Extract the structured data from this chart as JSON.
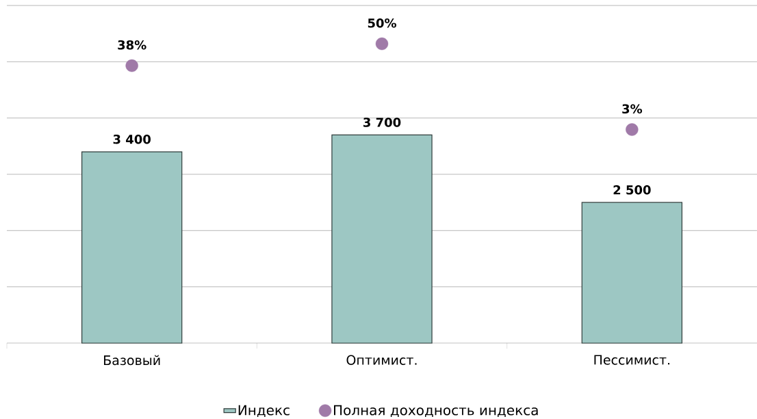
{
  "chart_data": {
    "type": "bar",
    "categories": [
      "Базовый",
      "Оптимист.",
      "Пессимист."
    ],
    "series": [
      {
        "name": "Индекс",
        "type": "bar",
        "color": "#9dc7c3",
        "values": [
          3400,
          3700,
          2500
        ],
        "value_labels": [
          "3 400",
          "3 700",
          "2 500"
        ]
      },
      {
        "name": "Полная доходность индекса",
        "type": "scatter",
        "axis": "y2",
        "color": "#a07aa8",
        "values": [
          38,
          50,
          3
        ],
        "value_labels": [
          "38%",
          "50%",
          "3%"
        ]
      }
    ],
    "ylim": [
      0,
      6000
    ],
    "yticks": [
      {
        "value": 0,
        "label": null
      },
      {
        "value": 1000,
        "label": null
      },
      {
        "value": 2000,
        "label": null
      },
      {
        "value": 3000,
        "label": null
      },
      {
        "value": 4000,
        "label": null
      },
      {
        "value": 5000,
        "label": null
      },
      {
        "value": 6000,
        "label": null
      }
    ],
    "y2lim": [
      -114,
      71
    ],
    "tick_labels": "x",
    "grid": "y",
    "legend": "bottom"
  }
}
